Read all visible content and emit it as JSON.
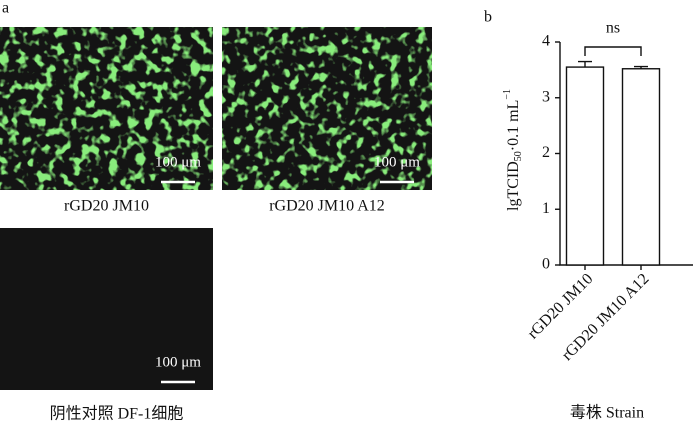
{
  "panel_a": {
    "label": "a",
    "images": [
      {
        "label": "rGD20 JM10",
        "scale_bar": "100 μm",
        "fluorescent": true
      },
      {
        "label": "rGD20 JM10 A12",
        "scale_bar": "100 μm",
        "fluorescent": true
      },
      {
        "label": "阴性对照  DF-1细胞",
        "scale_bar": "100 μm",
        "fluorescent": false
      }
    ]
  },
  "chart_data": {
    "type": "bar",
    "panel_label": "b",
    "ylabel": {
      "main": "lgTCID",
      "sub": "50",
      "rest": "·0.1 mL",
      "sup": "−1"
    },
    "xlabel": "毒株  Strain",
    "categories": [
      "rGD20 JM10",
      "rGD20 JM10 A12"
    ],
    "values": [
      3.55,
      3.52
    ],
    "errors": [
      0.1,
      0.04
    ],
    "color": "#ffffff",
    "edgecolor": "#111111",
    "ylim": [
      0,
      4
    ],
    "yticks": [
      0,
      1,
      2,
      3,
      4
    ],
    "annotation": "ns"
  }
}
